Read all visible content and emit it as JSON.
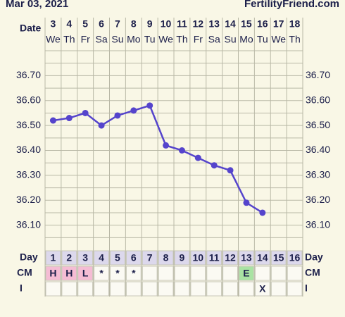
{
  "chart_data": {
    "type": "line",
    "header_date": "Mar 03, 2021",
    "site": "FertilityFriend.com",
    "row_labels": {
      "date": "Date",
      "day": "Day",
      "cm": "CM",
      "i": "I"
    },
    "categories": [
      "3",
      "4",
      "5",
      "6",
      "7",
      "8",
      "9",
      "10",
      "11",
      "12",
      "13",
      "14",
      "15",
      "16",
      "17",
      "18"
    ],
    "weekdays": [
      "We",
      "Th",
      "Fr",
      "Sa",
      "Su",
      "Mo",
      "Tu",
      "We",
      "Th",
      "Fr",
      "Sa",
      "Su",
      "Mo",
      "Tu",
      "We",
      "Th"
    ],
    "series": [
      {
        "name": null,
        "color": "#5544cc",
        "values": [
          36.52,
          36.53,
          36.55,
          36.5,
          36.54,
          36.56,
          36.58,
          36.42,
          36.4,
          36.37,
          36.34,
          36.32,
          36.19,
          36.15,
          null,
          null
        ]
      }
    ],
    "ylim": [
      36.0,
      36.8
    ],
    "yticks": [
      {
        "value": 36.1,
        "label": "36.10"
      },
      {
        "value": 36.2,
        "label": "36.20"
      },
      {
        "value": 36.3,
        "label": "36.30"
      },
      {
        "value": 36.4,
        "label": "36.40"
      },
      {
        "value": 36.5,
        "label": "36.50"
      },
      {
        "value": 36.6,
        "label": "36.60"
      },
      {
        "value": 36.7,
        "label": "36.70"
      }
    ],
    "grid": true,
    "days": [
      1,
      2,
      3,
      4,
      5,
      6,
      7,
      8,
      9,
      10,
      11,
      12,
      13,
      14,
      15,
      16
    ],
    "cm": [
      "H",
      "H",
      "L",
      "*",
      "*",
      "*",
      null,
      null,
      null,
      null,
      null,
      null,
      "E",
      null,
      null,
      null
    ],
    "cm_colors": {
      "H": "#f5bcd4",
      "L": "#f5bcd4",
      "E": "#a9e3a3"
    },
    "intercourse": [
      null,
      null,
      null,
      null,
      null,
      null,
      null,
      null,
      null,
      null,
      null,
      null,
      null,
      "X",
      null,
      null
    ]
  }
}
